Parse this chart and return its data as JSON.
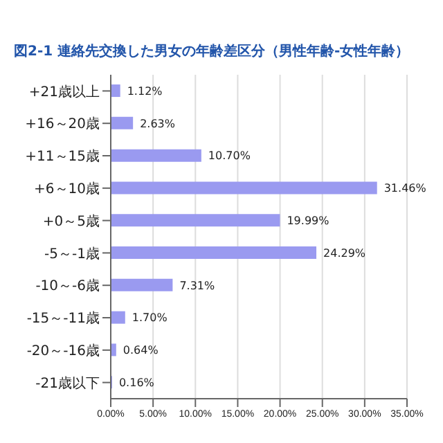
{
  "chart_data": {
    "type": "bar",
    "orientation": "horizontal",
    "title": "図2-1 連絡先交換した男女の年齢差区分（男性年齢-女性年齢）",
    "categories": [
      "+21歳以上",
      "+16～20歳",
      "+11～15歳",
      "+6～10歳",
      "+0～5歳",
      "-5～-1歳",
      "-10～-6歳",
      "-15～-11歳",
      "-20～-16歳",
      "-21歳以下"
    ],
    "values": [
      1.12,
      2.63,
      10.7,
      31.46,
      19.99,
      24.29,
      7.31,
      1.7,
      0.64,
      0.16
    ],
    "value_labels": [
      "1.12%",
      "2.63%",
      "10.70%",
      "31.46%",
      "19.99%",
      "24.29%",
      "7.31%",
      "1.70%",
      "0.64%",
      "0.16%"
    ],
    "color": "#9a9af0",
    "xlim": [
      0,
      35
    ],
    "xticks": [
      {
        "value": 0,
        "label": "0.00%"
      },
      {
        "value": 5,
        "label": "5.00%"
      },
      {
        "value": 10,
        "label": "10.00%"
      },
      {
        "value": 15,
        "label": "15.00%"
      },
      {
        "value": 20,
        "label": "20.00%"
      },
      {
        "value": 25,
        "label": "25.00%"
      },
      {
        "value": 30,
        "label": "30.00%"
      },
      {
        "value": 35,
        "label": "35.00%"
      }
    ],
    "grid": "x"
  }
}
